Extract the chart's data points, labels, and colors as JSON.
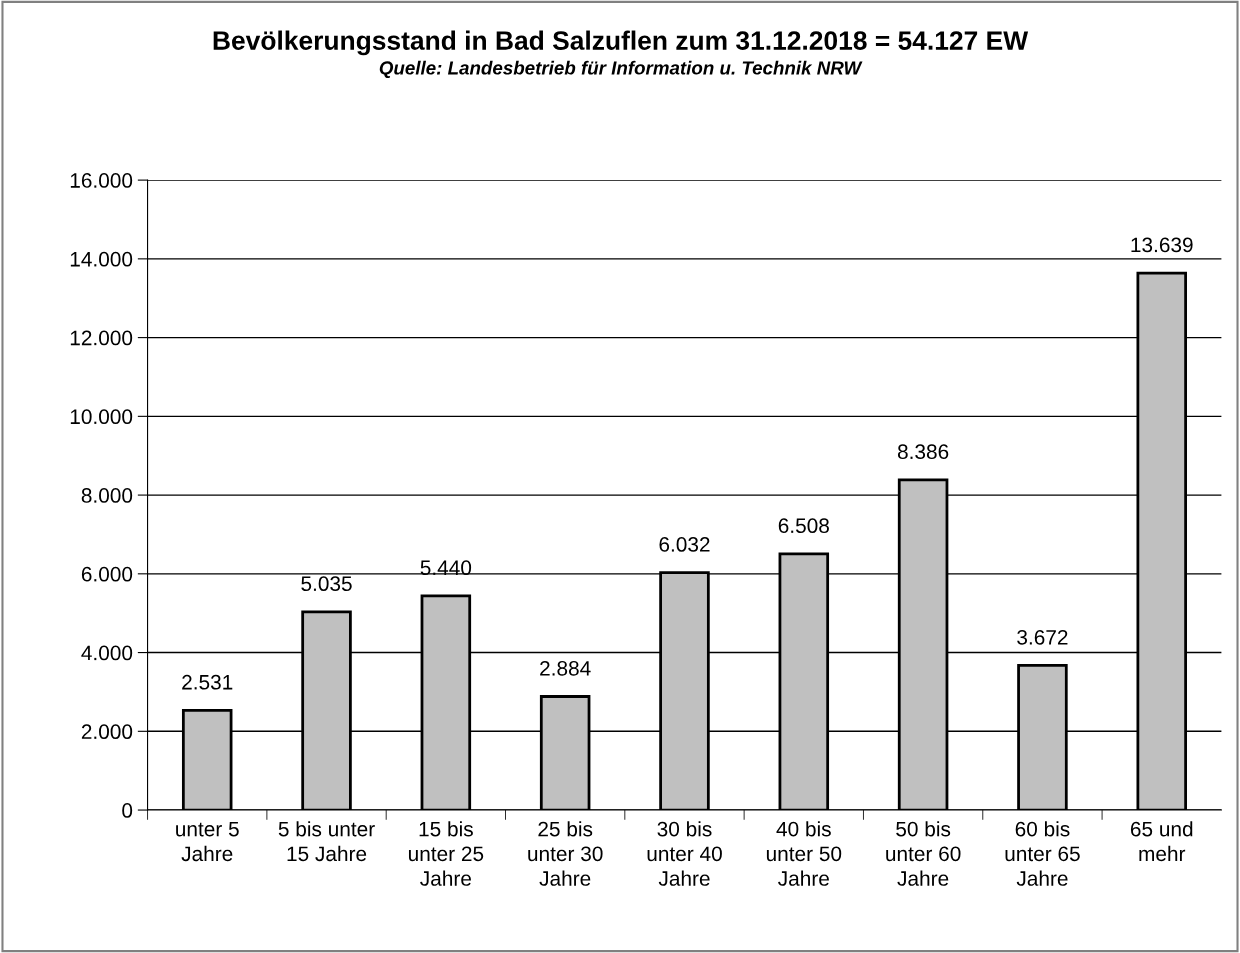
{
  "chart_data": {
    "type": "bar",
    "title": "Bevölkerungsstand in Bad Salzuflen zum 31.12.2018 = 54.127 EW",
    "subtitle": "Quelle: Landesbetrieb für Information u. Technik NRW",
    "categories": [
      "unter 5\nJahre",
      "5 bis unter\n15 Jahre",
      "15 bis\nunter 25\nJahre",
      "25 bis\nunter 30\nJahre",
      "30 bis\nunter 40\nJahre",
      "40 bis\nunter 50\nJahre",
      "50 bis\nunter 60\nJahre",
      "60 bis\nunter 65\nJahre",
      "65 und\nmehr"
    ],
    "values": [
      2531,
      5035,
      5440,
      2884,
      6032,
      6508,
      8386,
      3672,
      13639
    ],
    "value_labels": [
      "2.531",
      "5.035",
      "5.440",
      "2.884",
      "6.032",
      "6.508",
      "8.386",
      "3.672",
      "13.639"
    ],
    "color": "#c0c0c0",
    "ylim": [
      0,
      16000
    ],
    "yticks": [
      {
        "value": 0,
        "label": "0"
      },
      {
        "value": 2000,
        "label": "2.000"
      },
      {
        "value": 4000,
        "label": "4.000"
      },
      {
        "value": 6000,
        "label": "6.000"
      },
      {
        "value": 8000,
        "label": "8.000"
      },
      {
        "value": 10000,
        "label": "10.000"
      },
      {
        "value": 12000,
        "label": "12.000"
      },
      {
        "value": 14000,
        "label": "14.000"
      },
      {
        "value": 16000,
        "label": "16.000"
      }
    ],
    "grid": "y"
  }
}
